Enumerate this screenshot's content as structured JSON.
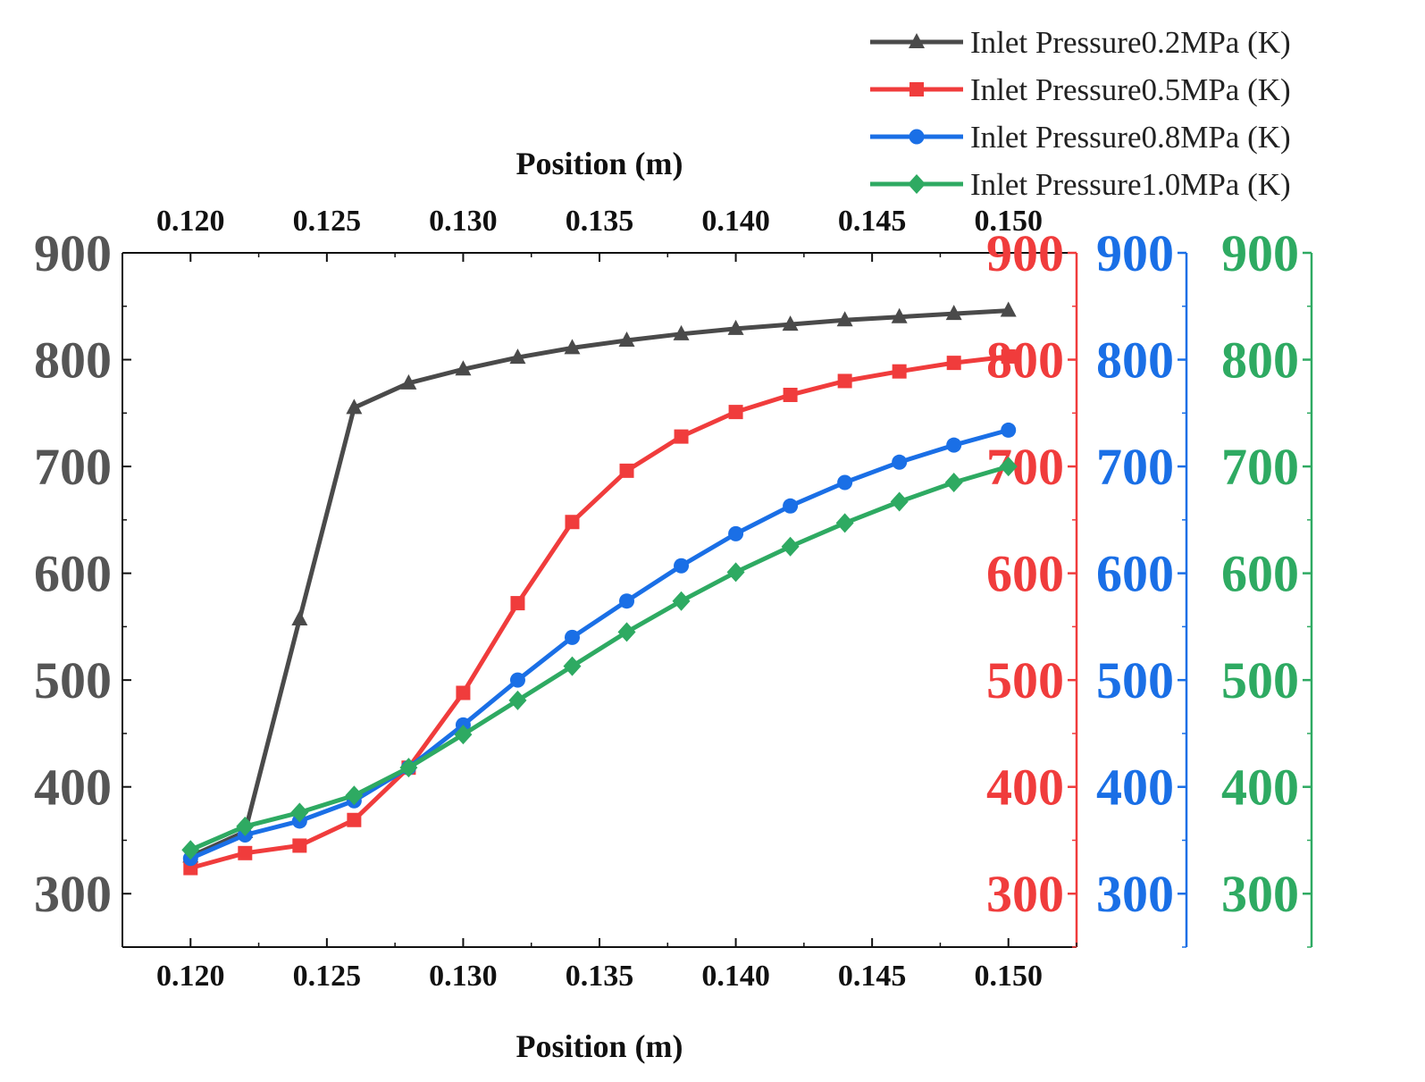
{
  "chart_data": {
    "type": "line",
    "xlabel_bottom": "Position (m)",
    "xlabel_top": "Position (m)",
    "xlim": [
      0.1175,
      0.1525
    ],
    "x_ticks": [
      "0.120",
      "0.125",
      "0.130",
      "0.135",
      "0.140",
      "0.145",
      "0.150"
    ],
    "ylim": [
      250,
      900
    ],
    "y_ticks": [
      "300",
      "400",
      "500",
      "600",
      "700",
      "800",
      "900"
    ],
    "x": [
      0.12,
      0.122,
      0.124,
      0.126,
      0.128,
      0.13,
      0.132,
      0.134,
      0.136,
      0.138,
      0.14,
      0.142,
      0.144,
      0.146,
      0.148,
      0.15
    ],
    "series": [
      {
        "name": "Inlet Pressure0.2MPa (K)",
        "color": "#4a4a4a",
        "marker": "triangle",
        "values": [
          335,
          358,
          557,
          755,
          778,
          791,
          802,
          811,
          818,
          824,
          829,
          833,
          837,
          840,
          843,
          846
        ]
      },
      {
        "name": "Inlet Pressure0.5MPa (K)",
        "color": "#f03c3c",
        "marker": "square",
        "values": [
          324,
          338,
          345,
          369,
          418,
          488,
          572,
          648,
          696,
          728,
          751,
          767,
          780,
          789,
          797,
          803
        ]
      },
      {
        "name": "Inlet Pressure0.8MPa (K)",
        "color": "#1a6fe6",
        "marker": "circle",
        "values": [
          333,
          355,
          368,
          387,
          418,
          458,
          500,
          540,
          574,
          607,
          637,
          663,
          685,
          704,
          720,
          734
        ]
      },
      {
        "name": "Inlet Pressure1.0MPa (K)",
        "color": "#2eaa62",
        "marker": "diamond",
        "values": [
          341,
          363,
          376,
          392,
          418,
          449,
          481,
          513,
          545,
          574,
          601,
          625,
          647,
          667,
          685,
          700
        ]
      }
    ],
    "left_axis_color": "#555555",
    "top_axis_color": "#111111"
  }
}
